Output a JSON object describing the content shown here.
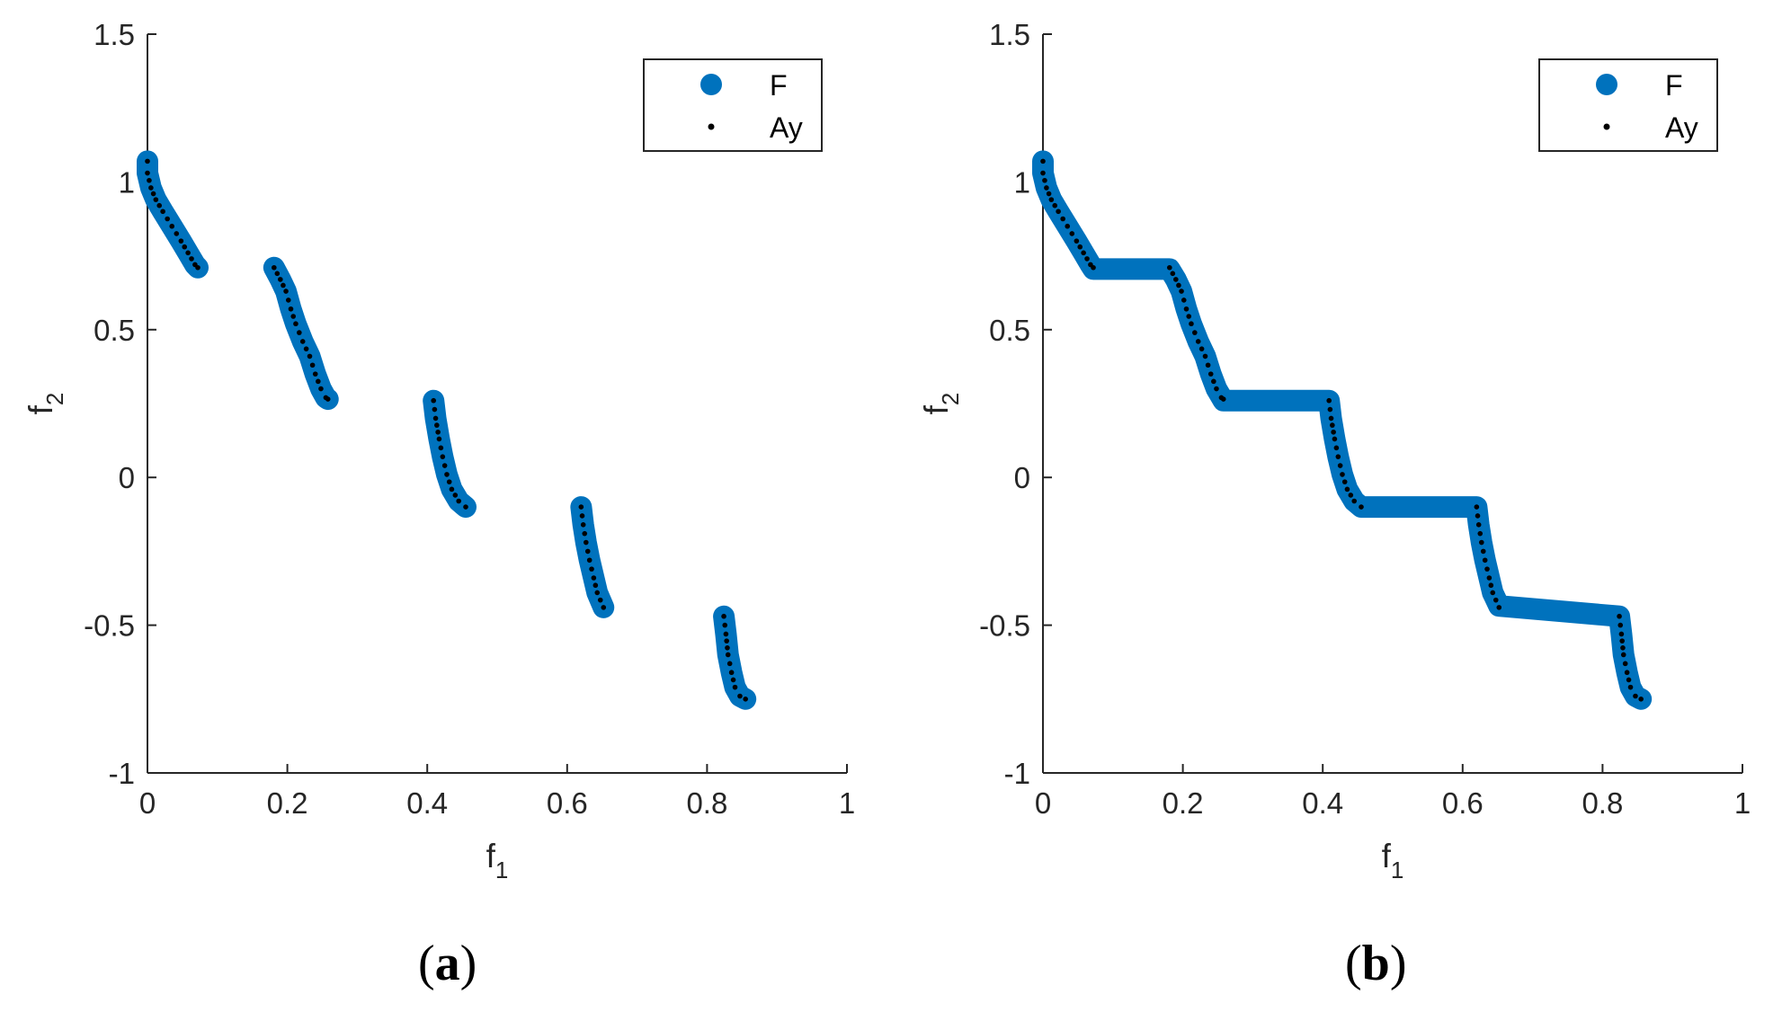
{
  "chart_data": [
    {
      "type": "scatter",
      "caption": "(a)",
      "xlabel": "f",
      "xlabel_sub": "1",
      "ylabel": "f",
      "ylabel_sub": "2",
      "xlim": [
        0,
        1
      ],
      "ylim": [
        -1,
        1.5
      ],
      "xticks": [
        0,
        0.2,
        0.4,
        0.6,
        0.8,
        1
      ],
      "xtick_labels": [
        "0",
        "0.2",
        "0.4",
        "0.6",
        "0.8",
        "1"
      ],
      "yticks": [
        -1,
        -0.5,
        0,
        0.5,
        1,
        1.5
      ],
      "ytick_labels": [
        "-1",
        "-0.5",
        "0",
        "0.5",
        "1",
        "1.5"
      ],
      "grid": false,
      "legend_position": "top-right",
      "legend": [
        "F",
        "Ay"
      ],
      "series_colors": {
        "F": "#0072BD",
        "Ay": "#000000"
      },
      "series": [
        {
          "name": "F",
          "marker": "large-circle",
          "segments": [
            [
              [
                0.0,
                1.07
              ],
              [
                0.0,
                1.03
              ],
              [
                0.005,
                0.98
              ],
              [
                0.012,
                0.94
              ],
              [
                0.022,
                0.9
              ],
              [
                0.035,
                0.85
              ],
              [
                0.048,
                0.8
              ],
              [
                0.058,
                0.76
              ],
              [
                0.068,
                0.72
              ],
              [
                0.072,
                0.71
              ]
            ],
            [
              [
                0.181,
                0.71
              ],
              [
                0.19,
                0.67
              ],
              [
                0.198,
                0.63
              ],
              [
                0.205,
                0.57
              ],
              [
                0.212,
                0.52
              ],
              [
                0.222,
                0.46
              ],
              [
                0.232,
                0.41
              ],
              [
                0.24,
                0.35
              ],
              [
                0.248,
                0.3
              ],
              [
                0.255,
                0.27
              ],
              [
                0.258,
                0.265
              ]
            ],
            [
              [
                0.409,
                0.26
              ],
              [
                0.412,
                0.2
              ],
              [
                0.417,
                0.13
              ],
              [
                0.422,
                0.07
              ],
              [
                0.428,
                0.01
              ],
              [
                0.435,
                -0.04
              ],
              [
                0.445,
                -0.08
              ],
              [
                0.455,
                -0.1
              ]
            ],
            [
              [
                0.62,
                -0.1
              ],
              [
                0.623,
                -0.16
              ],
              [
                0.627,
                -0.22
              ],
              [
                0.632,
                -0.28
              ],
              [
                0.638,
                -0.34
              ],
              [
                0.643,
                -0.39
              ],
              [
                0.652,
                -0.44
              ]
            ],
            [
              [
                0.824,
                -0.47
              ],
              [
                0.827,
                -0.53
              ],
              [
                0.83,
                -0.6
              ],
              [
                0.835,
                -0.66
              ],
              [
                0.84,
                -0.71
              ],
              [
                0.847,
                -0.74
              ],
              [
                0.855,
                -0.75
              ]
            ]
          ]
        },
        {
          "name": "Ay",
          "marker": "dot",
          "segments": [
            [
              [
                0.0,
                1.07
              ],
              [
                0.0,
                1.03
              ],
              [
                0.005,
                0.98
              ],
              [
                0.012,
                0.94
              ],
              [
                0.022,
                0.9
              ],
              [
                0.035,
                0.85
              ],
              [
                0.048,
                0.8
              ],
              [
                0.058,
                0.76
              ],
              [
                0.068,
                0.72
              ],
              [
                0.072,
                0.71
              ]
            ],
            [
              [
                0.181,
                0.71
              ],
              [
                0.19,
                0.67
              ],
              [
                0.198,
                0.63
              ],
              [
                0.205,
                0.57
              ],
              [
                0.212,
                0.52
              ],
              [
                0.222,
                0.46
              ],
              [
                0.232,
                0.41
              ],
              [
                0.24,
                0.35
              ],
              [
                0.248,
                0.3
              ],
              [
                0.255,
                0.27
              ],
              [
                0.258,
                0.265
              ]
            ],
            [
              [
                0.409,
                0.26
              ],
              [
                0.412,
                0.2
              ],
              [
                0.417,
                0.13
              ],
              [
                0.422,
                0.07
              ],
              [
                0.428,
                0.01
              ],
              [
                0.435,
                -0.04
              ],
              [
                0.445,
                -0.08
              ],
              [
                0.455,
                -0.1
              ]
            ],
            [
              [
                0.62,
                -0.1
              ],
              [
                0.623,
                -0.16
              ],
              [
                0.627,
                -0.22
              ],
              [
                0.632,
                -0.28
              ],
              [
                0.638,
                -0.34
              ],
              [
                0.643,
                -0.39
              ],
              [
                0.652,
                -0.44
              ]
            ],
            [
              [
                0.824,
                -0.47
              ],
              [
                0.827,
                -0.53
              ],
              [
                0.83,
                -0.6
              ],
              [
                0.835,
                -0.66
              ],
              [
                0.84,
                -0.71
              ],
              [
                0.847,
                -0.74
              ],
              [
                0.855,
                -0.75
              ]
            ]
          ]
        }
      ]
    },
    {
      "type": "scatter",
      "caption": "(b)",
      "xlabel": "f",
      "xlabel_sub": "1",
      "ylabel": "f",
      "ylabel_sub": "2",
      "xlim": [
        0,
        1
      ],
      "ylim": [
        -1,
        1.5
      ],
      "xticks": [
        0,
        0.2,
        0.4,
        0.6,
        0.8,
        1
      ],
      "xtick_labels": [
        "0",
        "0.2",
        "0.4",
        "0.6",
        "0.8",
        "1"
      ],
      "yticks": [
        -1,
        -0.5,
        0,
        0.5,
        1,
        1.5
      ],
      "ytick_labels": [
        "-1",
        "-0.5",
        "0",
        "0.5",
        "1",
        "1.5"
      ],
      "grid": false,
      "legend_position": "top-right",
      "legend": [
        "F",
        "Ay"
      ],
      "series_colors": {
        "F": "#0072BD",
        "Ay": "#000000"
      },
      "series": [
        {
          "name": "F",
          "marker": "large-circle",
          "segments": [
            [
              [
                0.0,
                1.07
              ],
              [
                0.0,
                1.03
              ],
              [
                0.005,
                0.98
              ],
              [
                0.012,
                0.94
              ],
              [
                0.022,
                0.9
              ],
              [
                0.035,
                0.85
              ],
              [
                0.048,
                0.8
              ],
              [
                0.058,
                0.76
              ],
              [
                0.068,
                0.72
              ],
              [
                0.072,
                0.705
              ],
              [
                0.181,
                0.705
              ],
              [
                0.19,
                0.67
              ],
              [
                0.198,
                0.63
              ],
              [
                0.205,
                0.57
              ],
              [
                0.212,
                0.52
              ],
              [
                0.222,
                0.46
              ],
              [
                0.232,
                0.41
              ],
              [
                0.24,
                0.35
              ],
              [
                0.248,
                0.3
              ],
              [
                0.258,
                0.26
              ],
              [
                0.409,
                0.26
              ],
              [
                0.412,
                0.2
              ],
              [
                0.417,
                0.13
              ],
              [
                0.422,
                0.07
              ],
              [
                0.428,
                0.01
              ],
              [
                0.435,
                -0.04
              ],
              [
                0.445,
                -0.08
              ],
              [
                0.455,
                -0.1
              ],
              [
                0.62,
                -0.1
              ],
              [
                0.623,
                -0.16
              ],
              [
                0.627,
                -0.22
              ],
              [
                0.632,
                -0.28
              ],
              [
                0.638,
                -0.34
              ],
              [
                0.643,
                -0.39
              ],
              [
                0.652,
                -0.435
              ],
              [
                0.824,
                -0.47
              ],
              [
                0.827,
                -0.53
              ],
              [
                0.83,
                -0.6
              ],
              [
                0.835,
                -0.66
              ],
              [
                0.84,
                -0.71
              ],
              [
                0.847,
                -0.74
              ],
              [
                0.855,
                -0.75
              ]
            ]
          ]
        },
        {
          "name": "Ay",
          "marker": "dot",
          "segments": [
            [
              [
                0.0,
                1.07
              ],
              [
                0.0,
                1.03
              ],
              [
                0.005,
                0.98
              ],
              [
                0.012,
                0.94
              ],
              [
                0.022,
                0.9
              ],
              [
                0.035,
                0.85
              ],
              [
                0.048,
                0.8
              ],
              [
                0.058,
                0.76
              ],
              [
                0.068,
                0.72
              ],
              [
                0.072,
                0.71
              ]
            ],
            [
              [
                0.181,
                0.71
              ],
              [
                0.19,
                0.67
              ],
              [
                0.198,
                0.63
              ],
              [
                0.205,
                0.57
              ],
              [
                0.212,
                0.52
              ],
              [
                0.222,
                0.46
              ],
              [
                0.232,
                0.41
              ],
              [
                0.24,
                0.35
              ],
              [
                0.248,
                0.3
              ],
              [
                0.255,
                0.27
              ],
              [
                0.258,
                0.265
              ]
            ],
            [
              [
                0.409,
                0.26
              ],
              [
                0.412,
                0.2
              ],
              [
                0.417,
                0.13
              ],
              [
                0.422,
                0.07
              ],
              [
                0.428,
                0.01
              ],
              [
                0.435,
                -0.04
              ],
              [
                0.445,
                -0.08
              ],
              [
                0.455,
                -0.1
              ]
            ],
            [
              [
                0.62,
                -0.1
              ],
              [
                0.623,
                -0.16
              ],
              [
                0.627,
                -0.22
              ],
              [
                0.632,
                -0.28
              ],
              [
                0.638,
                -0.34
              ],
              [
                0.643,
                -0.39
              ],
              [
                0.652,
                -0.44
              ]
            ],
            [
              [
                0.824,
                -0.47
              ],
              [
                0.827,
                -0.53
              ],
              [
                0.83,
                -0.6
              ],
              [
                0.835,
                -0.66
              ],
              [
                0.84,
                -0.71
              ],
              [
                0.847,
                -0.74
              ],
              [
                0.855,
                -0.75
              ]
            ]
          ]
        }
      ]
    }
  ]
}
